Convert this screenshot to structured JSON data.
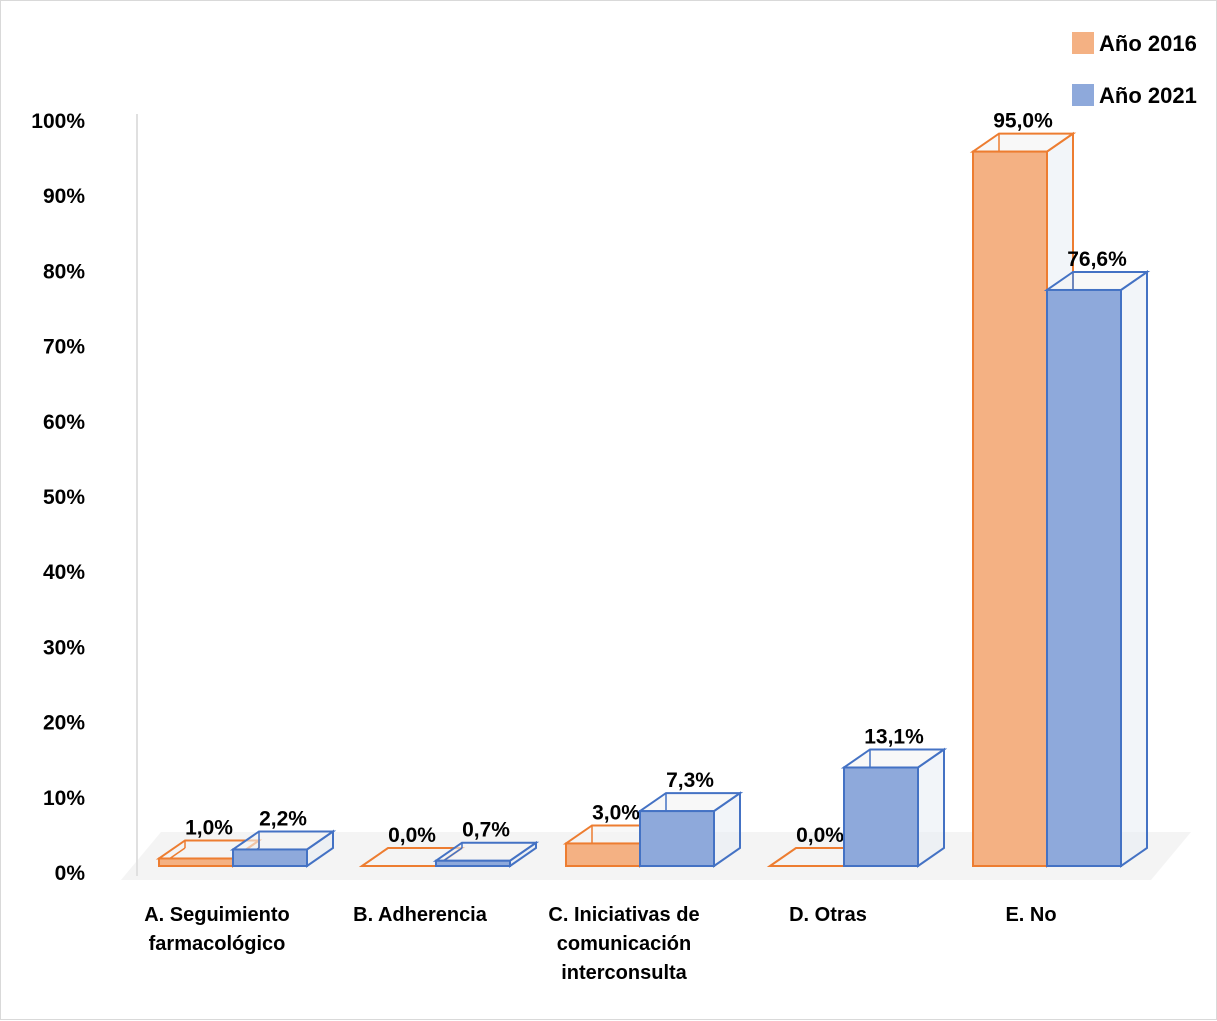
{
  "chart_data": {
    "type": "bar",
    "categories": [
      [
        "A. Seguimiento",
        "farmacológico"
      ],
      [
        "B. Adherencia"
      ],
      [
        "C. Iniciativas de",
        "comunicación",
        "interconsulta"
      ],
      [
        "D. Otras"
      ],
      [
        "E. No"
      ]
    ],
    "series": [
      {
        "name": "Año 2016",
        "values": [
          1.0,
          0.0,
          3.0,
          0.0,
          95.0
        ],
        "labels": [
          "1,0%",
          "0,0%",
          "3,0%",
          "0,0%",
          "95,0%"
        ],
        "color": "#F4B183",
        "stroke": "#ED7D31"
      },
      {
        "name": "Año 2021",
        "values": [
          2.2,
          0.7,
          7.3,
          13.1,
          76.6
        ],
        "labels": [
          "2,2%",
          "0,7%",
          "7,3%",
          "13,1%",
          "76,6%"
        ],
        "color": "#8EA9DB",
        "stroke": "#4472C4"
      }
    ],
    "yticks": [
      "0%",
      "10%",
      "20%",
      "30%",
      "40%",
      "50%",
      "60%",
      "70%",
      "80%",
      "90%",
      "100%"
    ],
    "ylim": [
      0,
      100
    ],
    "legend_position": "top-right",
    "grid": false
  }
}
